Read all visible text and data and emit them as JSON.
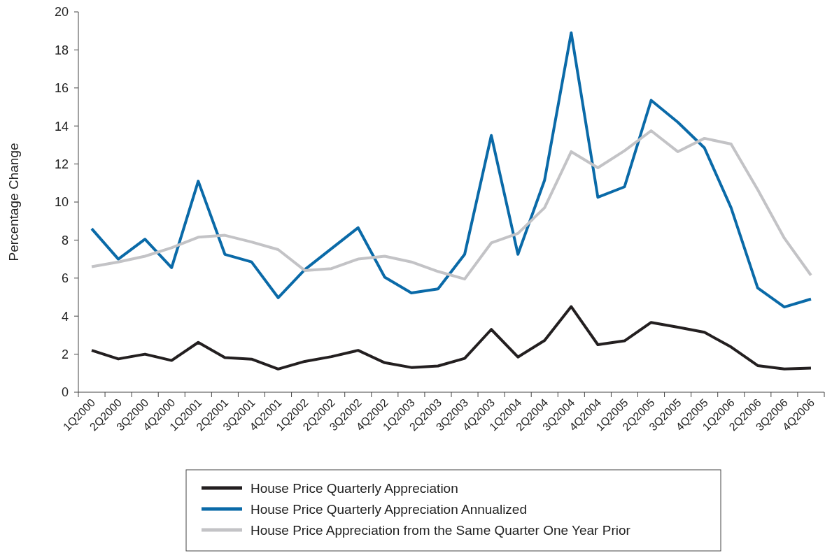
{
  "chart_data": {
    "type": "line",
    "ylabel": "Percentage Change",
    "categories": [
      "1Q2000",
      "2Q2000",
      "3Q2000",
      "4Q2000",
      "1Q2001",
      "2Q2001",
      "3Q2001",
      "4Q2001",
      "1Q2002",
      "2Q2002",
      "3Q2002",
      "4Q2002",
      "1Q2003",
      "2Q2003",
      "3Q2003",
      "4Q2003",
      "1Q2004",
      "2Q2004",
      "3Q2004",
      "4Q2004",
      "1Q2005",
      "2Q2005",
      "3Q2005",
      "4Q2005",
      "1Q2006",
      "2Q2006",
      "3Q2006",
      "4Q2006"
    ],
    "series": [
      {
        "name": "House Price Quarterly Appreciation",
        "color": "#231f20",
        "values": [
          2.2,
          1.75,
          2.0,
          1.67,
          2.62,
          1.82,
          1.74,
          1.22,
          1.62,
          1.87,
          2.2,
          1.55,
          1.3,
          1.38,
          1.78,
          3.3,
          1.85,
          2.72,
          4.5,
          2.5,
          2.7,
          3.67,
          3.42,
          3.15,
          2.38,
          1.4,
          1.22,
          1.27
        ]
      },
      {
        "name": "House Price Quarterly Appreciation Annualized",
        "color": "#0a6aa8",
        "values": [
          8.6,
          7.0,
          8.05,
          6.55,
          11.1,
          7.25,
          6.85,
          4.97,
          6.45,
          7.55,
          8.65,
          6.05,
          5.22,
          5.43,
          7.25,
          13.5,
          7.25,
          11.15,
          18.9,
          10.25,
          10.8,
          15.35,
          14.2,
          12.85,
          9.7,
          5.48,
          4.48,
          4.9
        ]
      },
      {
        "name": "House Price Appreciation from the Same Quarter One Year Prior",
        "color": "#c3c3c6",
        "values": [
          6.6,
          6.85,
          7.15,
          7.6,
          8.15,
          8.25,
          7.9,
          7.5,
          6.4,
          6.5,
          7.0,
          7.15,
          6.85,
          6.35,
          5.95,
          7.85,
          8.35,
          9.7,
          12.65,
          11.8,
          12.7,
          13.75,
          12.65,
          13.35,
          13.05,
          10.65,
          8.1,
          6.15
        ]
      }
    ],
    "ylim": [
      0,
      20
    ],
    "yticks": [
      0,
      2,
      4,
      6,
      8,
      10,
      12,
      14,
      16,
      18,
      20
    ],
    "grid": false,
    "legend": "bottom",
    "marker": "none",
    "line_style": "solid"
  }
}
